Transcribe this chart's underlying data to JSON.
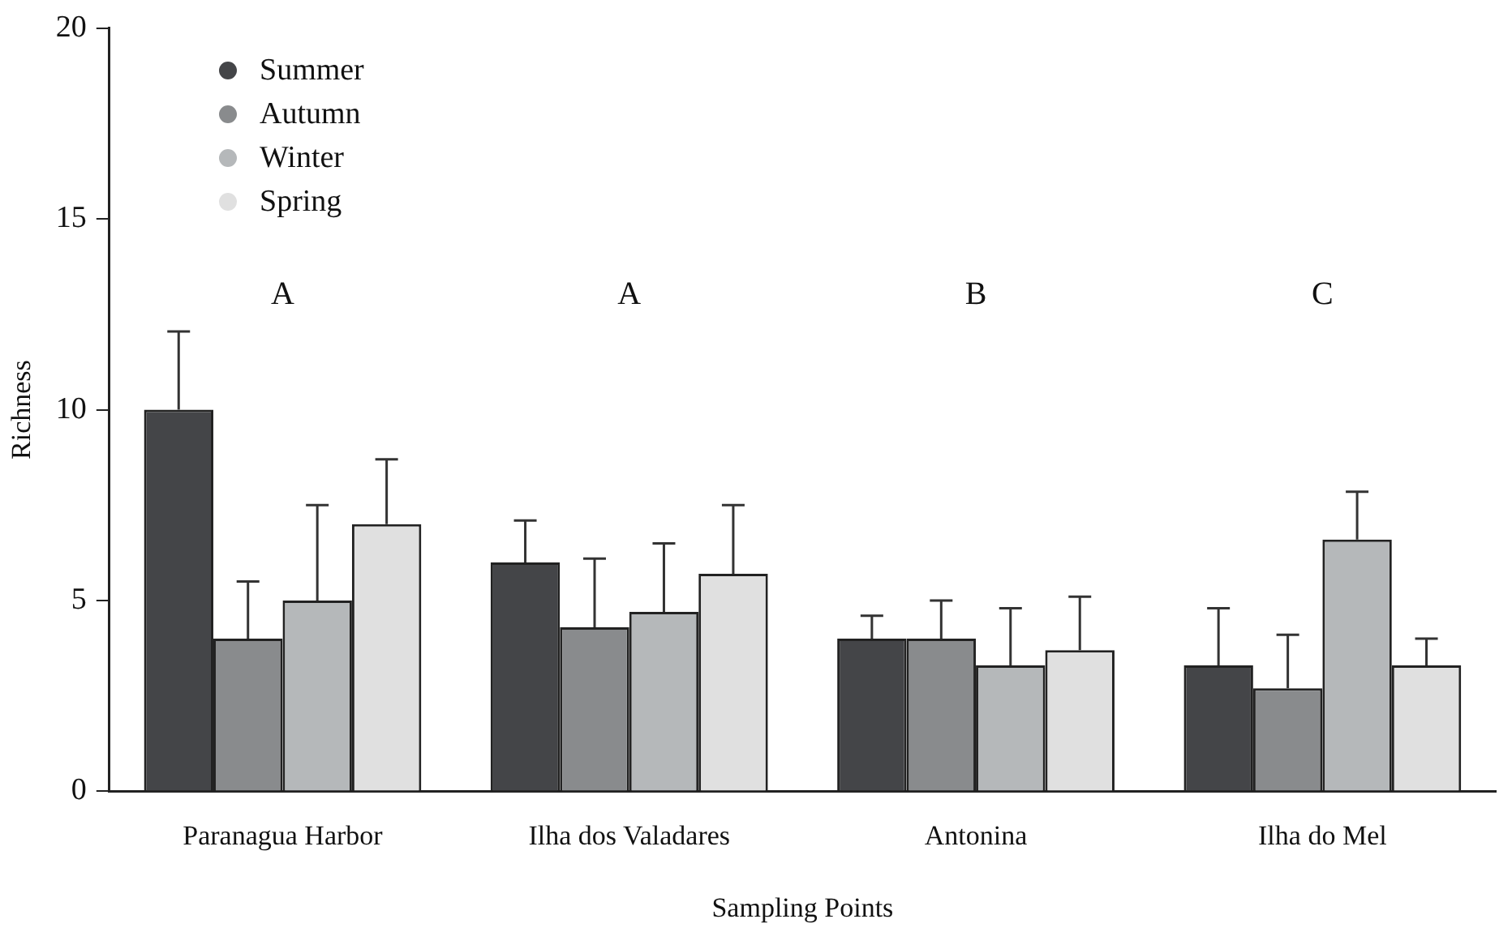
{
  "chart_data": {
    "type": "bar",
    "xlabel": "Sampling Points",
    "ylabel": "Richness",
    "categories": [
      "Paranagua Harbor",
      "Ilha dos Valadares",
      "Antonina",
      "Ilha do Mel"
    ],
    "series": [
      {
        "name": "Summer",
        "color": "#444548",
        "values": [
          10,
          6,
          4,
          3.3
        ],
        "errors": [
          [
            10,
            12.05
          ],
          [
            6,
            7.1
          ],
          [
            4,
            4.6
          ],
          [
            3.3,
            4.8
          ]
        ]
      },
      {
        "name": "Autumn",
        "color": "#898b8d",
        "values": [
          4,
          4.3,
          4,
          2.7
        ],
        "errors": [
          [
            4,
            5.5
          ],
          [
            4.3,
            6.1
          ],
          [
            4,
            5
          ],
          [
            2.7,
            4.1
          ]
        ]
      },
      {
        "name": "Winter",
        "color": "#b5b8ba",
        "values": [
          5,
          4.7,
          3.3,
          6.6
        ],
        "errors": [
          [
            5,
            7.5
          ],
          [
            4.7,
            6.5
          ],
          [
            3.3,
            4.8
          ],
          [
            6.6,
            7.85
          ]
        ]
      },
      {
        "name": "Spring",
        "color": "#e0e0e0",
        "values": [
          7,
          5.7,
          3.7,
          3.3
        ],
        "errors": [
          [
            7,
            8.7
          ],
          [
            5.7,
            7.5
          ],
          [
            3.7,
            5.1
          ],
          [
            3.3,
            4
          ]
        ]
      }
    ],
    "ylim": [
      0,
      20
    ],
    "yticks": [
      0,
      5,
      10,
      15,
      20
    ],
    "grid": false,
    "legend": "top left",
    "marker": "circle",
    "annotations": [
      "A",
      "A",
      "B",
      "C"
    ]
  }
}
